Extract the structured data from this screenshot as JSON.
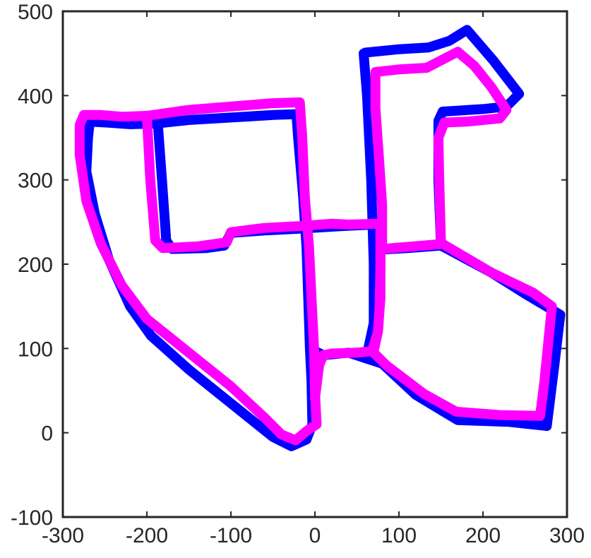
{
  "chart_data": {
    "type": "line",
    "title": "",
    "xlabel": "",
    "ylabel": "",
    "xlim": [
      -300,
      300
    ],
    "ylim": [
      -100,
      500
    ],
    "grid": false,
    "legend": "none",
    "xticks": [
      -300,
      -200,
      -100,
      0,
      100,
      200,
      300
    ],
    "yticks": [
      -100,
      0,
      100,
      200,
      300,
      400,
      500
    ],
    "xtick_labels": [
      "-300",
      "-200",
      "-100",
      "0",
      "100",
      "200",
      "300"
    ],
    "ytick_labels": [
      "-100",
      "0",
      "100",
      "200",
      "300",
      "400",
      "500"
    ],
    "series": [
      {
        "name": "blue trajectory",
        "color": "#0000ff",
        "segments": [
          [
            [
              -268,
              369
            ],
            [
              -248,
              368
            ],
            [
              -220,
              366
            ],
            [
              -187,
              367
            ],
            [
              -150,
              371
            ],
            [
              -100,
              374
            ],
            [
              -50,
              377
            ],
            [
              -22,
              378
            ],
            [
              -20,
              350
            ],
            [
              -14,
              280
            ],
            [
              -10,
              220
            ],
            [
              -8,
              160
            ],
            [
              -6,
              100
            ],
            [
              -4,
              60
            ],
            [
              -3,
              10
            ],
            [
              -10,
              -8
            ],
            [
              -28,
              -16
            ],
            [
              -50,
              -5
            ],
            [
              -100,
              35
            ],
            [
              -150,
              75
            ],
            [
              -195,
              115
            ],
            [
              -220,
              150
            ],
            [
              -245,
              205
            ],
            [
              -262,
              260
            ],
            [
              -272,
              310
            ],
            [
              -270,
              350
            ],
            [
              -268,
              369
            ]
          ],
          [
            [
              -187,
              367
            ],
            [
              -182,
              300
            ],
            [
              -177,
              228
            ],
            [
              -170,
              218
            ],
            [
              -130,
              219
            ],
            [
              -108,
              222
            ],
            [
              -100,
              237
            ],
            [
              -60,
              240
            ],
            [
              -20,
              242
            ],
            [
              30,
              245
            ],
            [
              70,
              247
            ]
          ],
          [
            [
              72,
              248
            ],
            [
              73,
              200
            ],
            [
              73,
              150
            ],
            [
              70,
              120
            ],
            [
              62,
              93
            ],
            [
              70,
              130
            ],
            [
              70,
              200
            ],
            [
              67,
              300
            ],
            [
              62,
              400
            ],
            [
              58,
              450
            ],
            [
              60,
              451
            ],
            [
              100,
              455
            ],
            [
              135,
              457
            ],
            [
              160,
              465
            ],
            [
              181,
              478
            ],
            [
              212,
              442
            ],
            [
              243,
              402
            ],
            [
              228,
              387
            ],
            [
              200,
              384
            ],
            [
              152,
              381
            ],
            [
              147,
              370
            ],
            [
              147,
              300
            ],
            [
              150,
              222
            ],
            [
              210,
              190
            ],
            [
              250,
              165
            ],
            [
              292,
              140
            ],
            [
              285,
              80
            ],
            [
              276,
              8
            ],
            [
              230,
              13
            ],
            [
              170,
              15
            ],
            [
              120,
              45
            ],
            [
              80,
              82
            ],
            [
              40,
              95
            ],
            [
              10,
              92
            ],
            [
              -6,
              100
            ]
          ],
          [
            [
              72,
              217
            ],
            [
              110,
              219
            ],
            [
              150,
              222
            ]
          ]
        ]
      },
      {
        "name": "magenta trajectory",
        "color": "#ff00ff",
        "segments": [
          [
            [
              -275,
              377
            ],
            [
              -255,
              377
            ],
            [
              -230,
              375
            ],
            [
              -200,
              376
            ],
            [
              -150,
              383
            ],
            [
              -100,
              387
            ],
            [
              -50,
              391
            ],
            [
              -18,
              392
            ],
            [
              -15,
              350
            ],
            [
              -12,
              280
            ],
            [
              -7,
              220
            ],
            [
              -4,
              160
            ],
            [
              -1,
              100
            ],
            [
              0,
              50
            ],
            [
              2,
              10
            ],
            [
              -10,
              2
            ],
            [
              -23,
              -9
            ],
            [
              -40,
              -2
            ],
            [
              -60,
              18
            ],
            [
              -100,
              55
            ],
            [
              -150,
              95
            ],
            [
              -200,
              135
            ],
            [
              -230,
              175
            ],
            [
              -255,
              225
            ],
            [
              -272,
              275
            ],
            [
              -280,
              330
            ],
            [
              -280,
              365
            ],
            [
              -275,
              377
            ]
          ],
          [
            [
              -200,
              376
            ],
            [
              -196,
              300
            ],
            [
              -190,
              228
            ],
            [
              -181,
              219
            ],
            [
              -140,
              221
            ],
            [
              -105,
              226
            ],
            [
              -100,
              238
            ],
            [
              -60,
              243
            ],
            [
              -20,
              245
            ],
            [
              20,
              248
            ],
            [
              40,
              247
            ],
            [
              75,
              248
            ]
          ],
          [
            [
              78,
              247
            ],
            [
              78,
              200
            ],
            [
              78,
              160
            ],
            [
              75,
              120
            ],
            [
              68,
              97
            ],
            [
              85,
              80
            ],
            [
              130,
              46
            ],
            [
              168,
              25
            ],
            [
              220,
              21
            ],
            [
              268,
              20
            ],
            [
              273,
              60
            ],
            [
              278,
              110
            ],
            [
              282,
              150
            ],
            [
              260,
              166
            ],
            [
              210,
              190
            ],
            [
              152,
              224
            ],
            [
              80,
              218
            ]
          ],
          [
            [
              78,
              245
            ],
            [
              78,
              200
            ],
            [
              77,
              150
            ],
            [
              75,
              120
            ],
            [
              70,
              97
            ],
            [
              50,
              95
            ],
            [
              20,
              94
            ],
            [
              10,
              92
            ],
            [
              5,
              80
            ],
            [
              0,
              40
            ]
          ],
          [
            [
              80,
              218
            ],
            [
              80,
              270
            ],
            [
              76,
              330
            ],
            [
              72,
              385
            ],
            [
              72,
              428
            ],
            [
              100,
              431
            ],
            [
              133,
              433
            ],
            [
              170,
              452
            ],
            [
              190,
              435
            ],
            [
              210,
              410
            ],
            [
              228,
              383
            ],
            [
              220,
              373
            ],
            [
              180,
              369
            ],
            [
              154,
              368
            ],
            [
              147,
              350
            ],
            [
              148,
              300
            ],
            [
              150,
              225
            ]
          ]
        ]
      }
    ]
  }
}
